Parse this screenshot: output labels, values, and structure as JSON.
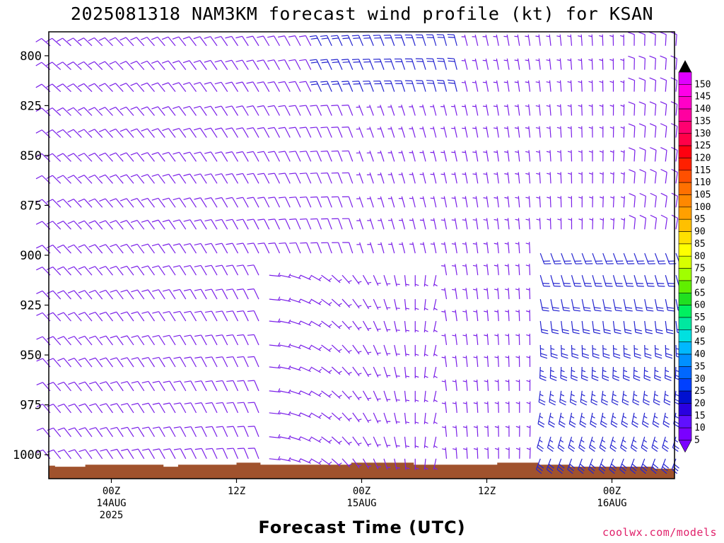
{
  "title": "2025081318 NAM3KM forecast wind profile (kt) for KSAN",
  "x_axis_title": "Forecast Time (UTC)",
  "credit": "coolwx.com/models",
  "colors": {
    "barb_purple": "#7a1fe8",
    "barb_blue": "#2424d0",
    "ground": "#a0522d",
    "credit": "#e0206a"
  },
  "chart_data": {
    "type": "wind-barb profile",
    "station": "KSAN",
    "model": "NAM3KM",
    "init": "2025081318",
    "units": "kt",
    "y_axis": {
      "label": "",
      "ticks": [
        800,
        825,
        850,
        875,
        900,
        925,
        950,
        975,
        1000
      ],
      "range": [
        788,
        1012
      ],
      "inverted": true
    },
    "x_axis": {
      "label": "Forecast Time (UTC)",
      "ticks": [
        {
          "hour": 6,
          "lines": [
            "00Z",
            "14AUG",
            "2025"
          ]
        },
        {
          "hour": 18,
          "lines": [
            "12Z"
          ]
        },
        {
          "hour": 30,
          "lines": [
            "00Z",
            "15AUG"
          ]
        },
        {
          "hour": 42,
          "lines": [
            "12Z"
          ]
        },
        {
          "hour": 54,
          "lines": [
            "00Z",
            "16AUG"
          ]
        }
      ],
      "range": [
        0,
        60
      ]
    },
    "barb_times_hr": [
      0,
      1,
      2,
      3,
      4,
      5,
      6,
      7,
      8,
      9,
      10,
      11,
      12,
      13,
      14,
      15,
      16,
      17,
      18,
      19,
      20,
      21,
      22,
      23,
      24,
      25,
      26,
      27,
      28,
      29,
      30,
      31,
      32,
      33,
      34,
      35,
      36,
      37,
      38,
      39,
      40,
      41,
      42,
      43,
      44,
      45,
      46,
      47,
      48,
      49,
      50,
      51,
      52,
      53,
      54,
      55,
      56,
      57,
      58,
      59,
      60
    ],
    "barb_levels_mb": [
      795,
      807,
      818,
      830,
      841,
      853,
      864,
      876,
      887,
      899,
      910,
      922,
      933,
      945,
      956,
      968,
      979,
      991,
      1002
    ],
    "surface_pressure_mb": [
      [
        0,
        1005.5
      ],
      [
        0.6,
        1006
      ],
      [
        2,
        1006
      ],
      [
        3.5,
        1005
      ],
      [
        7,
        1005
      ],
      [
        11,
        1006
      ],
      [
        12.4,
        1005
      ],
      [
        16,
        1005
      ],
      [
        18,
        1004
      ],
      [
        20.3,
        1005
      ],
      [
        28,
        1005
      ],
      [
        29,
        1004
      ],
      [
        33,
        1004
      ],
      [
        35,
        1005
      ],
      [
        42,
        1005
      ],
      [
        43,
        1004
      ],
      [
        46,
        1004
      ],
      [
        47,
        1005
      ],
      [
        49,
        1005
      ],
      [
        50,
        1006
      ],
      [
        53,
        1006
      ],
      [
        55.5,
        1006
      ],
      [
        58,
        1007
      ],
      [
        60,
        1007
      ]
    ],
    "surface_pressure_note": "boundary of brown ground fill",
    "wind_profile": {
      "description": "Light winds (5-25 kt) throughout; direction backs from northerly aloft toward northwesterly, with southerly/southeasterly flow near 900-975 mb around 15AUG 00Z and stronger (15-25 kt) southerly winds in the 900-1000 mb layer late in the period.",
      "max_speed_kt": 25
    },
    "colorbar": {
      "label_values": [
        5,
        10,
        15,
        20,
        25,
        30,
        35,
        40,
        45,
        50,
        55,
        60,
        65,
        70,
        75,
        80,
        85,
        90,
        95,
        100,
        105,
        110,
        115,
        120,
        125,
        130,
        135,
        140,
        145,
        150
      ],
      "colors": [
        "#7a00ff",
        "#6010ff",
        "#2a00e0",
        "#0010d0",
        "#0040ff",
        "#0068ff",
        "#0090ff",
        "#00b8ff",
        "#00e0e0",
        "#00e8a0",
        "#00f060",
        "#20e020",
        "#60ee00",
        "#a0ff00",
        "#d8ff00",
        "#ffff00",
        "#ffe000",
        "#ffc000",
        "#ffa000",
        "#ff8800",
        "#ff7000",
        "#ff5000",
        "#ff2000",
        "#ff0010",
        "#ff0048",
        "#ff0070",
        "#ff00a0",
        "#ff00c8",
        "#ff00e8",
        "#e000ff"
      ]
    }
  }
}
